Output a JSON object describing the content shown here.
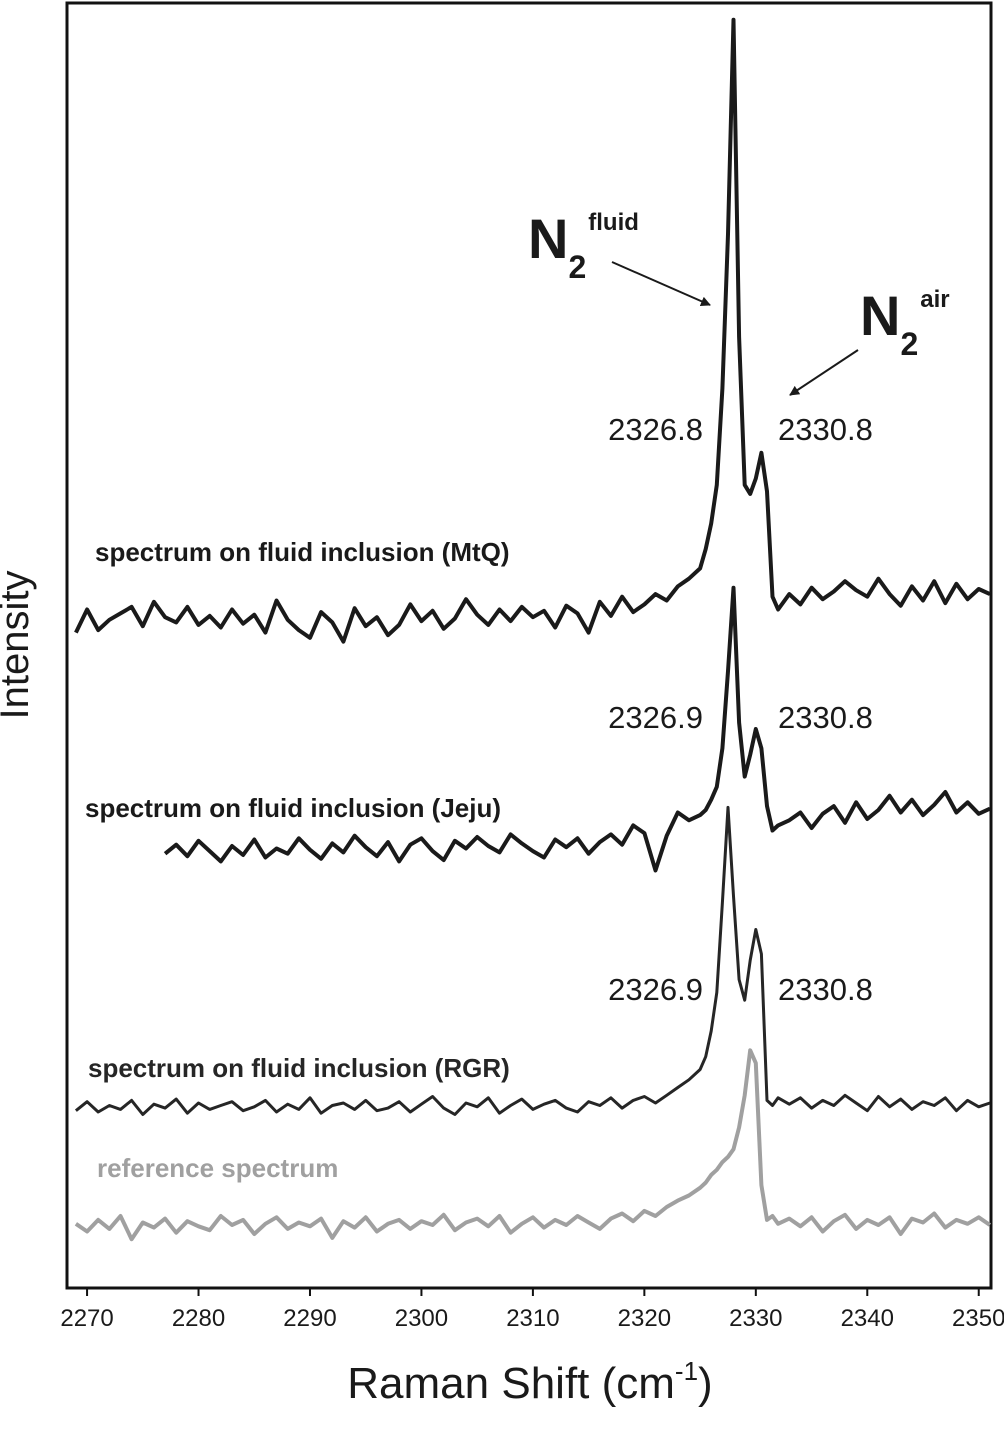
{
  "chart_data": {
    "type": "line",
    "xlabel": [
      "Raman Shift (cm",
      "-1",
      ")"
    ],
    "ylabel": "Intensity",
    "xlim": [
      2268.2,
      2351.1
    ],
    "ylim": [
      0,
      100
    ],
    "xticks": [
      2270,
      2280,
      2290,
      2300,
      2310,
      2320,
      2330,
      2340,
      2350
    ],
    "grid": false,
    "x": [
      2269,
      2270,
      2271,
      2272,
      2273,
      2274,
      2275,
      2276,
      2277,
      2278,
      2279,
      2280,
      2281,
      2282,
      2283,
      2284,
      2285,
      2286,
      2287,
      2288,
      2289,
      2290,
      2291,
      2292,
      2293,
      2294,
      2295,
      2296,
      2297,
      2298,
      2299,
      2300,
      2301,
      2302,
      2303,
      2304,
      2305,
      2306,
      2307,
      2308,
      2309,
      2310,
      2311,
      2312,
      2313,
      2314,
      2315,
      2316,
      2317,
      2318,
      2319,
      2320,
      2321,
      2322,
      2323,
      2324,
      2325,
      2325.5,
      2326,
      2326.5,
      2327,
      2327.5,
      2328,
      2328.5,
      2329,
      2329.5,
      2330,
      2330.5,
      2331,
      2331.5,
      2332,
      2333,
      2334,
      2335,
      2336,
      2337,
      2338,
      2339,
      2340,
      2341,
      2342,
      2343,
      2344,
      2345,
      2346,
      2347,
      2348,
      2349,
      2350,
      2351
    ],
    "series": [
      {
        "name": "spectrum on fluid inclusion (MtQ)",
        "color": "#1a1a1a",
        "values": [
          51.0,
          52.8,
          51.2,
          52.0,
          52.5,
          53.0,
          51.5,
          53.4,
          52.2,
          51.8,
          53.0,
          51.6,
          52.3,
          51.4,
          52.8,
          51.7,
          52.4,
          51.0,
          53.5,
          52.0,
          51.2,
          50.6,
          52.6,
          51.8,
          50.3,
          52.9,
          51.5,
          52.2,
          50.8,
          51.6,
          53.2,
          51.9,
          52.7,
          51.3,
          52.1,
          53.6,
          52.4,
          51.6,
          52.8,
          51.9,
          53.0,
          52.2,
          52.7,
          51.4,
          53.1,
          52.5,
          51.0,
          53.4,
          52.3,
          53.8,
          52.6,
          53.2,
          54.0,
          53.5,
          54.6,
          55.2,
          56.0,
          57.5,
          59.5,
          62.5,
          70.0,
          82.0,
          98.7,
          74.0,
          62.5,
          61.8,
          63.0,
          65.0,
          62.0,
          53.8,
          52.8,
          54.0,
          53.2,
          54.5,
          53.6,
          54.2,
          55.0,
          54.3,
          53.8,
          55.2,
          54.0,
          53.1,
          54.6,
          53.5,
          55.0,
          53.3,
          54.8,
          53.6,
          54.4,
          54.0
        ]
      },
      {
        "name": "spectrum on fluid inclusion (Jeju)",
        "color": "#1a1a1a",
        "values": [
          null,
          null,
          null,
          null,
          null,
          null,
          null,
          null,
          33.8,
          34.5,
          33.6,
          34.8,
          34.0,
          33.2,
          34.4,
          33.7,
          34.9,
          33.5,
          34.2,
          33.8,
          35.0,
          34.1,
          33.4,
          34.6,
          33.9,
          35.2,
          34.3,
          33.6,
          34.7,
          33.2,
          34.5,
          35.0,
          34.0,
          33.3,
          34.8,
          34.2,
          35.1,
          34.4,
          33.9,
          35.3,
          34.6,
          34.0,
          33.5,
          34.9,
          34.3,
          35.0,
          33.8,
          34.7,
          35.3,
          34.5,
          36.0,
          35.4,
          32.5,
          35.2,
          37.0,
          36.4,
          36.8,
          37.2,
          38.0,
          39.0,
          42.0,
          48.0,
          54.5,
          44.0,
          39.8,
          41.5,
          43.5,
          42.0,
          37.5,
          35.6,
          36.0,
          36.4,
          37.0,
          35.8,
          36.9,
          37.5,
          36.2,
          37.8,
          36.5,
          37.2,
          38.3,
          37.0,
          38.0,
          36.8,
          37.6,
          38.6,
          37.0,
          37.8,
          36.9,
          37.3
        ]
      },
      {
        "name": "spectrum on fluid inclusion (RGR)",
        "color": "#262626",
        "values": [
          13.8,
          14.5,
          13.7,
          14.2,
          13.9,
          14.6,
          13.5,
          14.3,
          14.0,
          14.7,
          13.6,
          14.4,
          13.9,
          14.2,
          14.5,
          13.8,
          14.1,
          14.6,
          13.7,
          14.3,
          13.9,
          14.8,
          13.6,
          14.2,
          14.4,
          13.9,
          14.6,
          13.8,
          14.0,
          14.5,
          13.7,
          14.3,
          14.9,
          14.0,
          13.5,
          14.4,
          14.1,
          14.8,
          13.6,
          14.2,
          14.7,
          13.9,
          14.3,
          14.6,
          14.0,
          13.7,
          14.5,
          14.2,
          14.8,
          14.0,
          14.6,
          14.9,
          14.4,
          15.0,
          15.6,
          16.2,
          17.0,
          18.0,
          20.0,
          23.0,
          30.0,
          37.4,
          30.5,
          24.0,
          22.4,
          25.5,
          27.9,
          26.0,
          14.6,
          14.2,
          14.8,
          14.3,
          14.8,
          14.0,
          14.6,
          14.2,
          15.0,
          14.4,
          13.8,
          14.9,
          14.1,
          14.7,
          13.9,
          14.5,
          14.2,
          14.8,
          13.8,
          14.6,
          14.1,
          14.4
        ]
      },
      {
        "name": "reference spectrum",
        "color": "#a0a0a0",
        "values": [
          5.0,
          4.4,
          5.3,
          4.6,
          5.6,
          3.8,
          5.1,
          4.7,
          5.4,
          4.3,
          5.2,
          4.8,
          4.5,
          5.6,
          4.9,
          5.3,
          4.2,
          5.0,
          5.5,
          4.6,
          5.1,
          4.8,
          5.4,
          3.9,
          5.2,
          4.7,
          5.5,
          4.4,
          5.0,
          5.3,
          4.6,
          5.2,
          4.9,
          5.7,
          4.5,
          5.1,
          5.4,
          4.8,
          5.6,
          4.3,
          5.0,
          5.5,
          4.7,
          5.3,
          4.9,
          5.6,
          5.1,
          4.6,
          5.4,
          5.8,
          5.2,
          6.0,
          5.6,
          6.3,
          6.8,
          7.2,
          7.8,
          8.2,
          8.8,
          9.2,
          9.8,
          10.2,
          10.8,
          12.5,
          15.0,
          18.5,
          17.5,
          8.0,
          5.3,
          5.6,
          5.0,
          5.4,
          4.8,
          5.5,
          4.4,
          5.2,
          5.7,
          4.6,
          5.3,
          4.9,
          5.5,
          4.2,
          5.4,
          5.1,
          5.8,
          4.7,
          5.3,
          5.0,
          5.5,
          4.9
        ]
      }
    ],
    "peak_labels": [
      "2326.8",
      "2330.8",
      "2326.9",
      "2330.8",
      "2326.9",
      "2330.8"
    ],
    "species_labels": [
      {
        "text": "N",
        "sub": "2",
        "sup": "fluid"
      },
      {
        "text": "N",
        "sub": "2",
        "sup": "air"
      }
    ]
  }
}
